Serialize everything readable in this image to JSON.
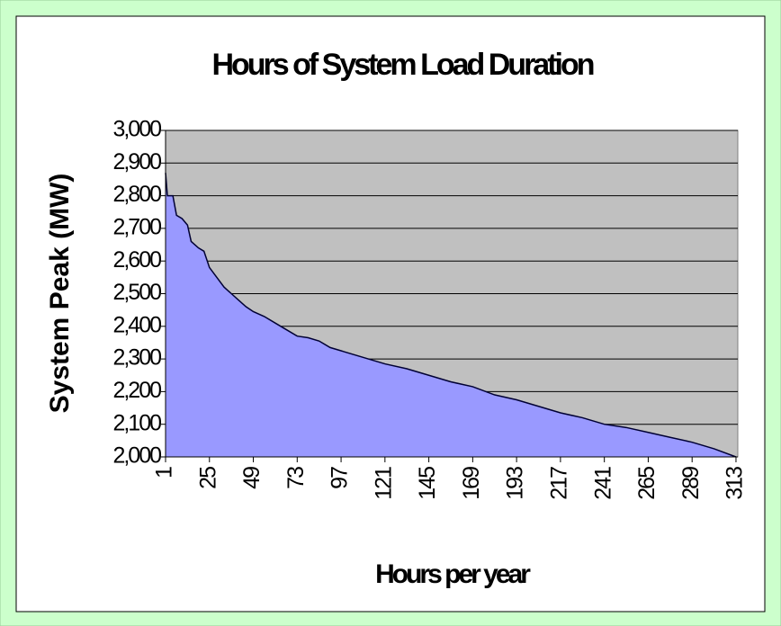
{
  "chart_data": {
    "type": "area",
    "title": "Hours of System Load Duration",
    "x_label": "Hours per year",
    "y_label": "System Peak (MW)",
    "x": [
      1,
      2,
      5,
      7,
      10,
      13,
      15,
      19,
      22,
      25,
      29,
      33,
      37,
      41,
      45,
      49,
      55,
      61,
      67,
      73,
      79,
      85,
      91,
      97,
      109,
      121,
      133,
      145,
      157,
      169,
      181,
      193,
      205,
      217,
      229,
      241,
      253,
      265,
      277,
      289,
      301,
      313
    ],
    "values": [
      2870,
      2800,
      2800,
      2740,
      2730,
      2710,
      2660,
      2640,
      2630,
      2580,
      2550,
      2520,
      2500,
      2480,
      2460,
      2445,
      2430,
      2410,
      2390,
      2370,
      2365,
      2355,
      2335,
      2325,
      2305,
      2285,
      2270,
      2250,
      2230,
      2215,
      2190,
      2175,
      2155,
      2135,
      2120,
      2100,
      2090,
      2075,
      2060,
      2045,
      2025,
      2000
    ],
    "color": "#9999ff",
    "xlim": [
      1,
      314
    ],
    "xticks": [
      1,
      25,
      49,
      73,
      97,
      121,
      145,
      169,
      193,
      217,
      241,
      265,
      289,
      313
    ],
    "ylim": [
      2000,
      3000
    ],
    "yticks": [
      {
        "value": 2000,
        "label": "2,000"
      },
      {
        "value": 2100,
        "label": "2,100"
      },
      {
        "value": 2200,
        "label": "2,200"
      },
      {
        "value": 2300,
        "label": "2,300"
      },
      {
        "value": 2400,
        "label": "2,400"
      },
      {
        "value": 2500,
        "label": "2,500"
      },
      {
        "value": 2600,
        "label": "2,600"
      },
      {
        "value": 2700,
        "label": "2,700"
      },
      {
        "value": 2800,
        "label": "2,800"
      },
      {
        "value": 2900,
        "label": "2,900"
      },
      {
        "value": 3000,
        "label": "3,000"
      }
    ],
    "grid": true
  }
}
